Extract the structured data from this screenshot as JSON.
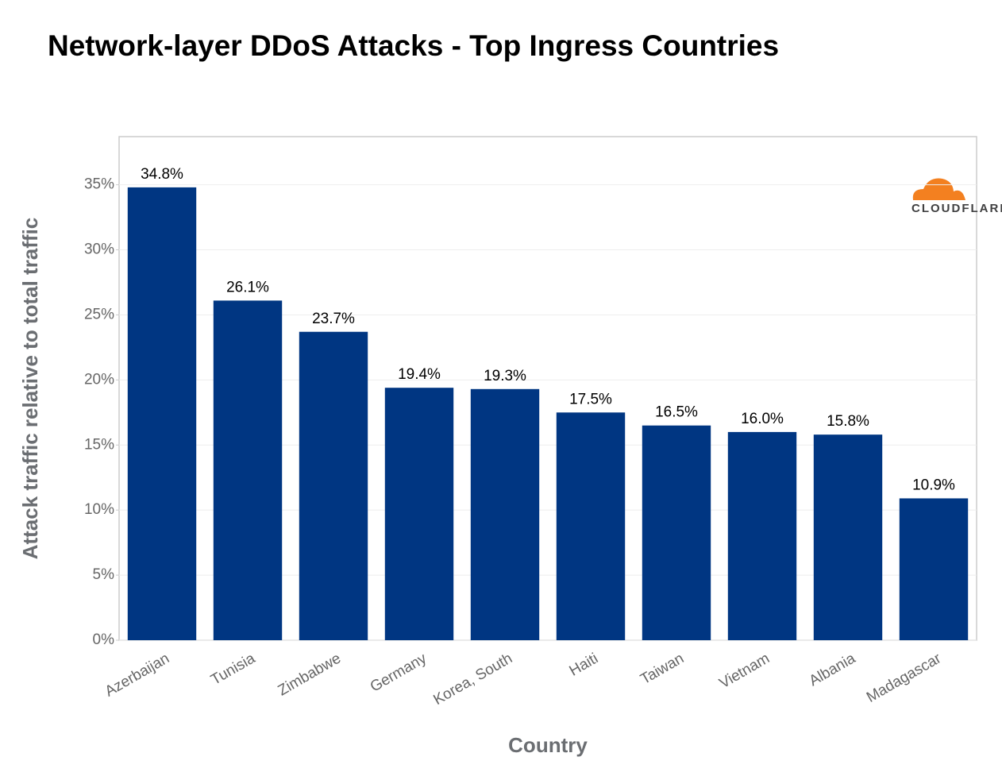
{
  "chart_data": {
    "type": "bar",
    "title": "Network-layer DDoS Attacks - Top Ingress Countries",
    "logo_text": "CLOUDFLARE",
    "x_label": "Country",
    "y_label": "Attack traffic relative to total traffic",
    "categories": [
      "Azerbaijan",
      "Tunisia",
      "Zimbabwe",
      "Germany",
      "Korea, South",
      "Haiti",
      "Taiwan",
      "Vietnam",
      "Albania",
      "Madagascar"
    ],
    "values": [
      34.8,
      26.1,
      23.7,
      19.4,
      19.3,
      17.5,
      16.5,
      16.0,
      15.8,
      10.9
    ],
    "value_labels": [
      "34.8%",
      "26.1%",
      "23.7%",
      "19.4%",
      "19.3%",
      "17.5%",
      "16.5%",
      "16.0%",
      "15.8%",
      "10.9%"
    ],
    "color": "#003682",
    "ylim": [
      0,
      38.7
    ],
    "yticks": [
      {
        "value": 0,
        "label": "0%"
      },
      {
        "value": 5,
        "label": "5%"
      },
      {
        "value": 10,
        "label": "10%"
      },
      {
        "value": 15,
        "label": "15%"
      },
      {
        "value": 20,
        "label": "20%"
      },
      {
        "value": 25,
        "label": "25%"
      },
      {
        "value": 30,
        "label": "30%"
      },
      {
        "value": 35,
        "label": "35%"
      }
    ],
    "grid": true
  }
}
